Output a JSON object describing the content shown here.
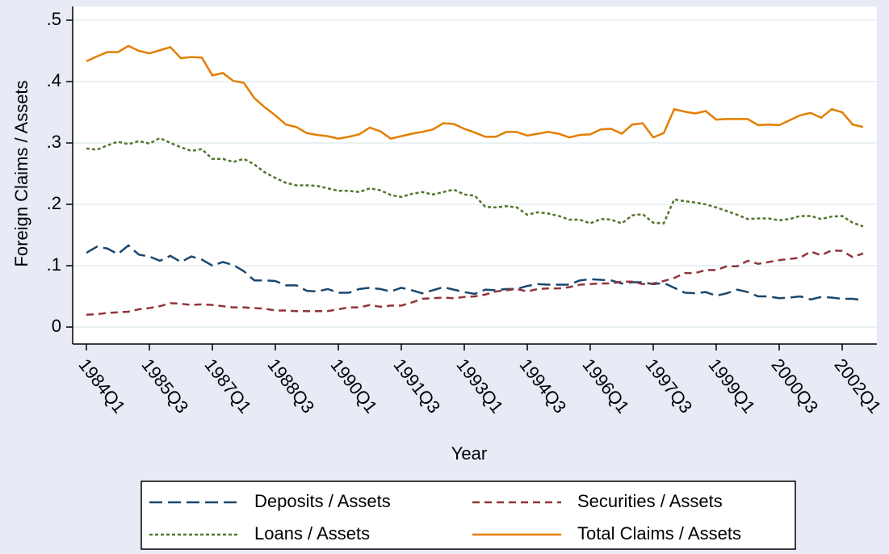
{
  "chart_data": {
    "type": "line",
    "xlabel": "Year",
    "ylabel": "Foreign Claims / Assets",
    "categories": [
      "1984Q1",
      "1984Q2",
      "1984Q3",
      "1984Q4",
      "1985Q1",
      "1985Q2",
      "1985Q3",
      "1985Q4",
      "1986Q1",
      "1986Q2",
      "1986Q3",
      "1986Q4",
      "1987Q1",
      "1987Q2",
      "1987Q3",
      "1987Q4",
      "1988Q1",
      "1988Q2",
      "1988Q3",
      "1988Q4",
      "1989Q1",
      "1989Q2",
      "1989Q3",
      "1989Q4",
      "1990Q1",
      "1990Q2",
      "1990Q3",
      "1990Q4",
      "1991Q1",
      "1991Q2",
      "1991Q3",
      "1991Q4",
      "1992Q1",
      "1992Q2",
      "1992Q3",
      "1992Q4",
      "1993Q1",
      "1993Q2",
      "1993Q3",
      "1993Q4",
      "1994Q1",
      "1994Q2",
      "1994Q3",
      "1994Q4",
      "1995Q1",
      "1995Q2",
      "1995Q3",
      "1995Q4",
      "1996Q1",
      "1996Q2",
      "1996Q3",
      "1996Q4",
      "1997Q1",
      "1997Q2",
      "1997Q3",
      "1997Q4",
      "1998Q1",
      "1998Q2",
      "1998Q3",
      "1998Q4",
      "1999Q1",
      "1999Q2",
      "1999Q3",
      "1999Q4",
      "2000Q1",
      "2000Q2",
      "2000Q3",
      "2000Q4",
      "2001Q1",
      "2001Q2",
      "2001Q3",
      "2001Q4",
      "2002Q1",
      "2002Q2",
      "2002Q3"
    ],
    "xticks": [
      "1984Q1",
      "1985Q3",
      "1987Q1",
      "1988Q3",
      "1990Q1",
      "1991Q3",
      "1993Q1",
      "1994Q3",
      "1996Q1",
      "1997Q3",
      "1999Q1",
      "2000Q3",
      "2002Q1"
    ],
    "ylim": [
      0,
      0.5
    ],
    "yticks": [
      0,
      {
        "value": 0.1,
        "label": ".1"
      },
      {
        "value": 0.2,
        "label": ".2"
      },
      {
        "value": 0.3,
        "label": ".3"
      },
      {
        "value": 0.4,
        "label": ".4"
      },
      {
        "value": 0.5,
        "label": ".5"
      }
    ],
    "grid": true,
    "series": [
      {
        "name": "Deposits / Assets",
        "color": "#1a476f",
        "values": [
          0.121,
          0.131,
          0.128,
          0.119,
          0.133,
          0.118,
          0.115,
          0.108,
          0.116,
          0.106,
          0.115,
          0.11,
          0.1,
          0.106,
          0.101,
          0.091,
          0.076,
          0.076,
          0.075,
          0.068,
          0.068,
          0.059,
          0.058,
          0.062,
          0.056,
          0.056,
          0.062,
          0.064,
          0.062,
          0.058,
          0.064,
          0.06,
          0.055,
          0.06,
          0.065,
          0.061,
          0.057,
          0.054,
          0.061,
          0.06,
          0.062,
          0.062,
          0.067,
          0.07,
          0.069,
          0.069,
          0.069,
          0.076,
          0.078,
          0.077,
          0.076,
          0.071,
          0.073,
          0.073,
          0.07,
          0.072,
          0.064,
          0.056,
          0.055,
          0.057,
          0.051,
          0.055,
          0.061,
          0.057,
          0.05,
          0.05,
          0.047,
          0.048,
          0.05,
          0.045,
          0.049,
          0.048,
          0.046,
          0.046,
          0.044
        ]
      },
      {
        "name": "Securities / Assets",
        "color": "#90353b",
        "values": [
          0.02,
          0.021,
          0.023,
          0.024,
          0.025,
          0.029,
          0.031,
          0.034,
          0.039,
          0.038,
          0.036,
          0.037,
          0.036,
          0.034,
          0.032,
          0.032,
          0.031,
          0.03,
          0.027,
          0.027,
          0.026,
          0.026,
          0.026,
          0.026,
          0.029,
          0.032,
          0.032,
          0.036,
          0.033,
          0.035,
          0.035,
          0.04,
          0.046,
          0.047,
          0.048,
          0.047,
          0.049,
          0.05,
          0.053,
          0.058,
          0.06,
          0.062,
          0.058,
          0.062,
          0.063,
          0.063,
          0.065,
          0.069,
          0.07,
          0.071,
          0.071,
          0.074,
          0.074,
          0.07,
          0.071,
          0.075,
          0.08,
          0.088,
          0.088,
          0.093,
          0.093,
          0.099,
          0.099,
          0.108,
          0.103,
          0.106,
          0.109,
          0.111,
          0.113,
          0.123,
          0.117,
          0.125,
          0.124,
          0.114,
          0.12
        ]
      },
      {
        "name": "Loans / Assets",
        "color": "#55752f",
        "values": [
          0.291,
          0.289,
          0.296,
          0.302,
          0.298,
          0.303,
          0.299,
          0.308,
          0.3,
          0.293,
          0.287,
          0.29,
          0.274,
          0.274,
          0.269,
          0.274,
          0.265,
          0.252,
          0.243,
          0.235,
          0.231,
          0.231,
          0.23,
          0.226,
          0.222,
          0.222,
          0.22,
          0.226,
          0.223,
          0.215,
          0.212,
          0.217,
          0.22,
          0.216,
          0.22,
          0.224,
          0.216,
          0.214,
          0.196,
          0.195,
          0.197,
          0.195,
          0.183,
          0.187,
          0.185,
          0.181,
          0.175,
          0.175,
          0.169,
          0.176,
          0.175,
          0.169,
          0.182,
          0.184,
          0.17,
          0.169,
          0.208,
          0.205,
          0.203,
          0.2,
          0.195,
          0.189,
          0.183,
          0.176,
          0.177,
          0.177,
          0.174,
          0.176,
          0.181,
          0.181,
          0.176,
          0.18,
          0.181,
          0.17,
          0.164
        ]
      },
      {
        "name": "Total Claims / Assets",
        "color": "#e37e00",
        "values": [
          0.433,
          0.441,
          0.448,
          0.448,
          0.458,
          0.45,
          0.446,
          0.451,
          0.456,
          0.438,
          0.44,
          0.439,
          0.41,
          0.414,
          0.401,
          0.398,
          0.373,
          0.358,
          0.345,
          0.33,
          0.326,
          0.316,
          0.313,
          0.311,
          0.307,
          0.31,
          0.314,
          0.325,
          0.319,
          0.307,
          0.311,
          0.315,
          0.318,
          0.322,
          0.332,
          0.331,
          0.323,
          0.317,
          0.31,
          0.31,
          0.318,
          0.318,
          0.312,
          0.315,
          0.318,
          0.315,
          0.309,
          0.313,
          0.314,
          0.322,
          0.323,
          0.315,
          0.33,
          0.332,
          0.309,
          0.316,
          0.355,
          0.351,
          0.348,
          0.352,
          0.338,
          0.339,
          0.339,
          0.339,
          0.329,
          0.33,
          0.329,
          0.337,
          0.345,
          0.349,
          0.341,
          0.355,
          0.35,
          0.33,
          0.326
        ]
      }
    ]
  }
}
